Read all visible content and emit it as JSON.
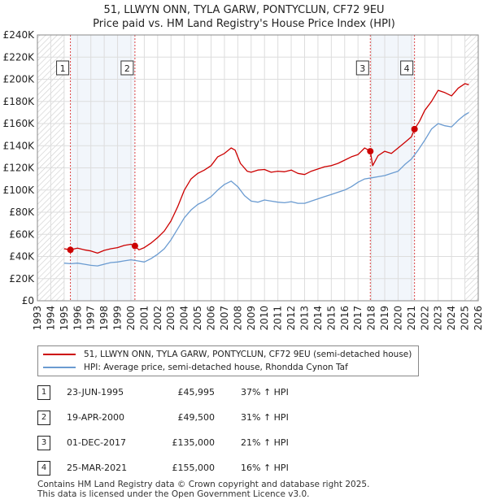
{
  "title": "51, LLWYN ONN, TYLA GARW, PONTYCLUN, CF72 9EU",
  "subtitle": "Price paid vs. HM Land Registry's House Price Index (HPI)",
  "colors": {
    "property": "#cc0000",
    "hpi": "#6a9bd1",
    "grid": "#dddddd",
    "shade": "#e8eef8"
  },
  "chart_data": {
    "type": "line",
    "xlim": [
      1993,
      2026
    ],
    "ylim": [
      0,
      240000
    ],
    "y_ticks": [
      {
        "value": 0,
        "label": "£0"
      },
      {
        "value": 20000,
        "label": "£20K"
      },
      {
        "value": 40000,
        "label": "£40K"
      },
      {
        "value": 60000,
        "label": "£60K"
      },
      {
        "value": 80000,
        "label": "£80K"
      },
      {
        "value": 100000,
        "label": "£100K"
      },
      {
        "value": 120000,
        "label": "£120K"
      },
      {
        "value": 140000,
        "label": "£140K"
      },
      {
        "value": 160000,
        "label": "£160K"
      },
      {
        "value": 180000,
        "label": "£180K"
      },
      {
        "value": 200000,
        "label": "£200K"
      },
      {
        "value": 220000,
        "label": "£220K"
      },
      {
        "value": 240000,
        "label": "£240K"
      }
    ],
    "x_ticks": [
      "1993",
      "1994",
      "1995",
      "1996",
      "1997",
      "1998",
      "1999",
      "2000",
      "2001",
      "2002",
      "2003",
      "2004",
      "2005",
      "2006",
      "2007",
      "2008",
      "2009",
      "2010",
      "2011",
      "2012",
      "2013",
      "2014",
      "2015",
      "2016",
      "2017",
      "2018",
      "2019",
      "2020",
      "2021",
      "2022",
      "2023",
      "2024",
      "2025",
      "2026"
    ],
    "hatched_ranges": [
      [
        1993,
        1995.0
      ],
      [
        2025.0,
        2026
      ]
    ],
    "series": [
      {
        "name": "51, LLWYN ONN, TYLA GARW, PONTYCLUN, CF72 9EU (semi-detached house)",
        "x": [
          1995.0,
          1995.47,
          1996,
          1996.5,
          1997,
          1997.5,
          1998,
          1998.5,
          1999,
          1999.5,
          2000.0,
          2000.3,
          2000.6,
          2001,
          2001.5,
          2002,
          2002.5,
          2003,
          2003.5,
          2004,
          2004.5,
          2005,
          2005.5,
          2006,
          2006.5,
          2007,
          2007.5,
          2007.8,
          2008.2,
          2008.7,
          2009,
          2009.5,
          2010,
          2010.5,
          2011,
          2011.5,
          2012,
          2012.5,
          2013,
          2013.5,
          2014,
          2014.5,
          2015,
          2015.5,
          2016,
          2016.5,
          2017,
          2017.5,
          2017.92,
          2018.1,
          2018.5,
          2019,
          2019.5,
          2020,
          2020.5,
          2021.0,
          2021.23,
          2021.6,
          2022,
          2022.5,
          2023,
          2023.5,
          2024,
          2024.5,
          2025,
          2025.3
        ],
        "values": [
          47000,
          45995,
          47500,
          46000,
          45000,
          43000,
          45500,
          47000,
          48000,
          50000,
          51000,
          49500,
          46000,
          48000,
          52000,
          57000,
          63000,
          72000,
          85000,
          100000,
          110000,
          115000,
          118000,
          122000,
          130000,
          133000,
          138000,
          136000,
          124000,
          117000,
          116000,
          118000,
          118500,
          116000,
          117000,
          116500,
          118000,
          115000,
          114000,
          117000,
          119000,
          121000,
          122000,
          124000,
          127000,
          130000,
          132000,
          138000,
          135000,
          122000,
          131000,
          135000,
          133000,
          138000,
          143000,
          148000,
          155000,
          162000,
          172000,
          180000,
          190000,
          188000,
          185000,
          192000,
          196000,
          195000
        ],
        "color": "#cc0000"
      },
      {
        "name": "HPI: Average price, semi-detached house, Rhondda Cynon Taf",
        "x": [
          1995.0,
          1995.5,
          1996,
          1996.5,
          1997,
          1997.5,
          1998,
          1998.5,
          1999,
          1999.5,
          2000,
          2000.5,
          2001,
          2001.5,
          2002,
          2002.5,
          2003,
          2003.5,
          2004,
          2004.5,
          2005,
          2005.5,
          2006,
          2006.5,
          2007,
          2007.5,
          2008,
          2008.5,
          2009,
          2009.5,
          2010,
          2010.5,
          2011,
          2011.5,
          2012,
          2012.5,
          2013,
          2013.5,
          2014,
          2014.5,
          2015,
          2015.5,
          2016,
          2016.5,
          2017,
          2017.5,
          2018,
          2018.5,
          2019,
          2019.5,
          2020,
          2020.5,
          2021,
          2021.5,
          2022,
          2022.5,
          2023,
          2023.5,
          2024,
          2024.5,
          2025,
          2025.3
        ],
        "values": [
          34000,
          33500,
          34000,
          33000,
          32000,
          31500,
          33000,
          34500,
          35000,
          36000,
          37000,
          36000,
          35000,
          38000,
          42000,
          47000,
          55000,
          65000,
          75000,
          82000,
          87000,
          90000,
          94000,
          100000,
          105000,
          108000,
          103000,
          95000,
          90000,
          89000,
          91000,
          90000,
          89000,
          88500,
          89500,
          88000,
          88000,
          90000,
          92000,
          94000,
          96000,
          98000,
          100000,
          103000,
          107000,
          110000,
          111000,
          112000,
          113000,
          115000,
          117000,
          123000,
          128000,
          136000,
          145000,
          155000,
          160000,
          158000,
          157000,
          163000,
          168000,
          170000
        ],
        "color": "#6a9bd1"
      }
    ],
    "sale_markers": [
      {
        "label": "1",
        "x": 1995.47,
        "y": 45995
      },
      {
        "label": "2",
        "x": 2000.3,
        "y": 49500
      },
      {
        "label": "3",
        "x": 2017.92,
        "y": 135000
      },
      {
        "label": "4",
        "x": 2021.23,
        "y": 155000
      }
    ]
  },
  "legend": {
    "property_label": "51, LLWYN ONN, TYLA GARW, PONTYCLUN, CF72 9EU (semi-detached house)",
    "hpi_label": "HPI: Average price, semi-detached house, Rhondda Cynon Taf"
  },
  "sales": [
    {
      "num": "1",
      "date": "23-JUN-1995",
      "price": "£45,995",
      "hpi": "37% ↑ HPI"
    },
    {
      "num": "2",
      "date": "19-APR-2000",
      "price": "£49,500",
      "hpi": "31% ↑ HPI"
    },
    {
      "num": "3",
      "date": "01-DEC-2017",
      "price": "£135,000",
      "hpi": "21% ↑ HPI"
    },
    {
      "num": "4",
      "date": "25-MAR-2021",
      "price": "£155,000",
      "hpi": "16% ↑ HPI"
    }
  ],
  "footer": {
    "line1": "Contains HM Land Registry data © Crown copyright and database right 2025.",
    "line2": "This data is licensed under the Open Government Licence v3.0."
  }
}
